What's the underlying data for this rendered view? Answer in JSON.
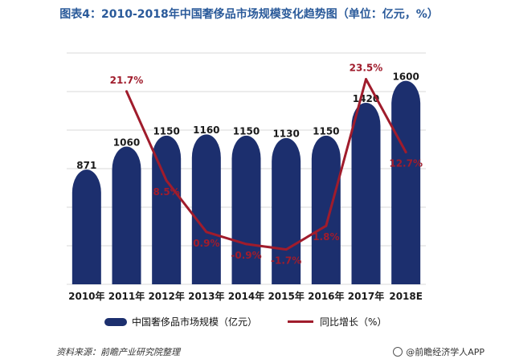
{
  "title": "图表4：2010-2018年中国奢侈品市场规模变化趋势图（单位：亿元，%）",
  "legend": {
    "bar_label": "中国奢侈品市场规模（亿元）",
    "line_label": "同比增长（%）"
  },
  "source": "资料来源：前瞻产业研究院整理",
  "brand": "@前瞻经济学人APP",
  "colors": {
    "bar": "#1c2f6e",
    "line": "#a01c2c",
    "bar_label": "#1a1a1a",
    "line_label": "#a01c2c",
    "grid": "#d9d9d9"
  },
  "chart_data": {
    "type": "bar",
    "categories": [
      "2010年",
      "2011年",
      "2012年",
      "2013年",
      "2014年",
      "2015年",
      "2016年",
      "2017年",
      "2018E"
    ],
    "series": [
      {
        "name": "中国奢侈品市场规模（亿元）",
        "type": "bar",
        "values": [
          871,
          1060,
          1150,
          1160,
          1150,
          1130,
          1150,
          1420,
          1600
        ],
        "labels": [
          "871",
          "1060",
          "1150",
          "1160",
          "1150",
          "1130",
          "1150",
          "1420",
          "1600"
        ]
      },
      {
        "name": "同比增长（%）",
        "type": "line",
        "values": [
          null,
          21.7,
          8.5,
          0.9,
          -0.9,
          -1.7,
          1.8,
          23.5,
          12.7
        ],
        "labels": [
          "",
          "21.7%",
          "8.5%",
          "0.9%",
          "-0.9%",
          "-1.7%",
          "1.8%",
          "23.5%",
          "12.7%"
        ]
      }
    ],
    "ylim_bar": [
      0,
      1900
    ],
    "ylim_line": [
      -4,
      25
    ],
    "grid": true,
    "legend_position": "bottom"
  }
}
